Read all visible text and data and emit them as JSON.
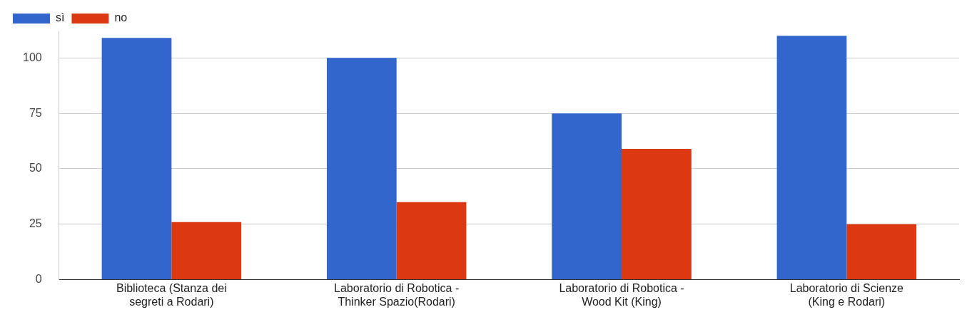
{
  "chart_data": {
    "type": "bar",
    "categories": [
      "Biblioteca (Stanza dei segreti a Rodari)",
      "Laboratorio di Robotica - Thinker Spazio(Rodari)",
      "Laboratorio di Robotica - Wood Kit (King)",
      "Laboratorio di Scienze (King e Rodari)"
    ],
    "series": [
      {
        "name": "sì",
        "color": "#3366cc",
        "values": [
          109,
          100,
          75,
          110
        ]
      },
      {
        "name": "no",
        "color": "#dc3912",
        "values": [
          26,
          35,
          59,
          25
        ]
      }
    ],
    "ylim": [
      0,
      112
    ],
    "yticks": [
      0,
      25,
      50,
      75,
      100
    ],
    "grid": "y",
    "legend": "top left"
  }
}
